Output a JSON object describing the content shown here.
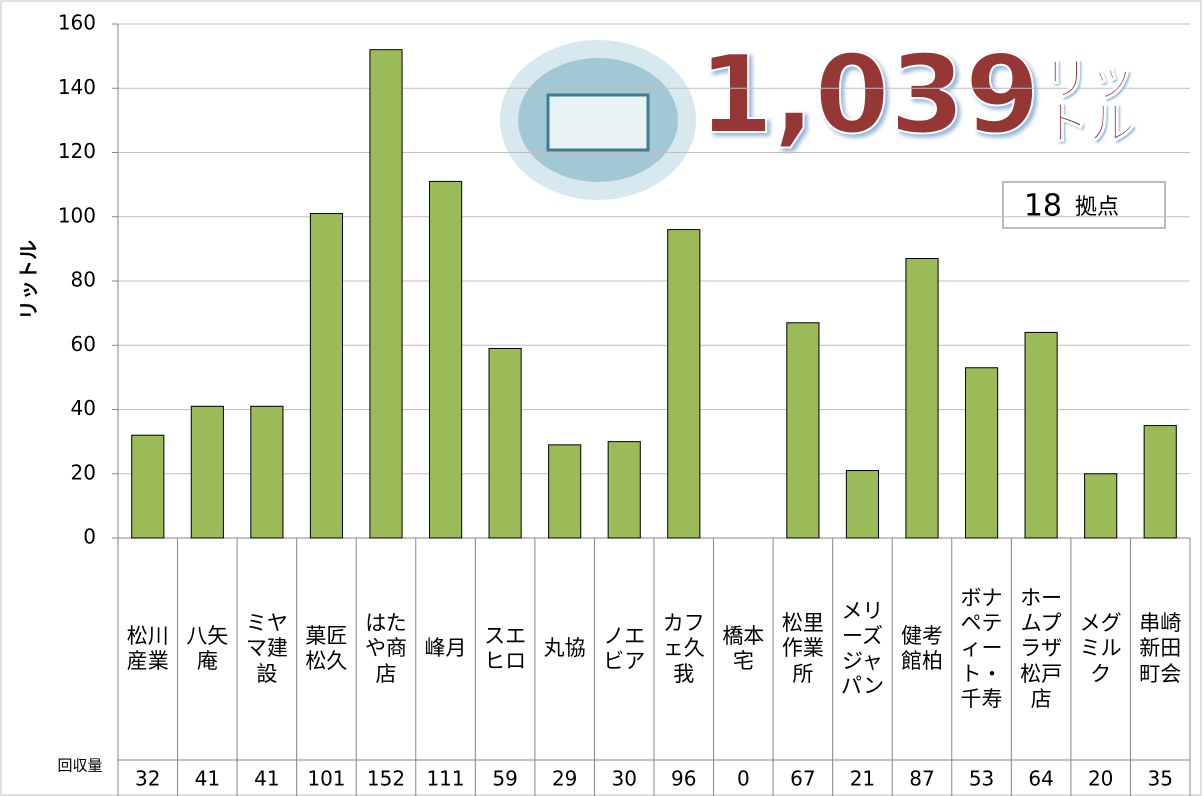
{
  "chart_data": {
    "type": "bar",
    "y_label": "リットル",
    "table_row_label": "回収量",
    "total": "1,039",
    "total_unit": "リットル",
    "sites": "18",
    "sites_unit": "拠点",
    "categories": [
      "松川産業",
      "八矢庵",
      "ミヤマ建設",
      "菓匠松久",
      "はたや商店",
      "峰月",
      "スエヒロ",
      "丸協",
      "ノエビア",
      "カフェ久我",
      "橋本宅",
      "松里作業所",
      "メリーズジャパン",
      "健考館柏",
      "ボナペティート・千寿",
      "ホームプラザ松戸店",
      "メグミルク",
      "串崎新田町会"
    ],
    "values": [
      32,
      41,
      41,
      101,
      152,
      111,
      59,
      29,
      30,
      96,
      0,
      67,
      21,
      87,
      53,
      64,
      20,
      35
    ],
    "color": "#9bbb59",
    "ylim": [
      0,
      160
    ],
    "yticks": [
      0,
      20,
      40,
      60,
      80,
      100,
      120,
      140,
      160
    ],
    "grid": true
  }
}
